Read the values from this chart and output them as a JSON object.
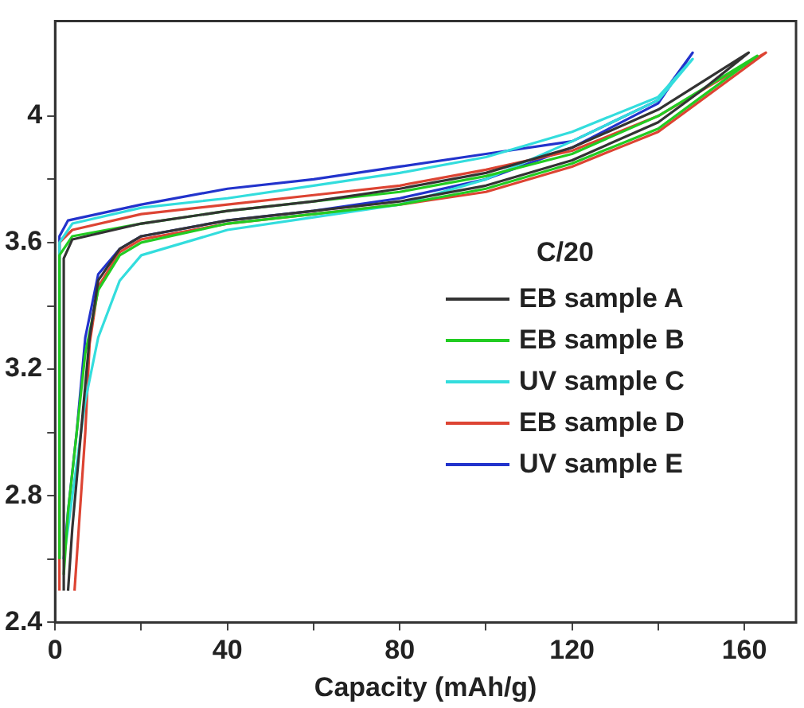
{
  "chart_data": {
    "type": "line",
    "xlabel": "Capacity (mAh/g)",
    "legend_title": "C/20",
    "legend": "center right",
    "grid": false,
    "marker": "none",
    "line_style": "solid",
    "xlim": [
      0,
      172
    ],
    "ylim": [
      2.4,
      4.3
    ],
    "xticks": [
      0,
      {
        "value": 20,
        "label": null
      },
      40,
      {
        "value": 60,
        "label": null
      },
      80,
      {
        "value": 100,
        "label": null
      },
      120,
      {
        "value": 140,
        "label": null
      },
      160
    ],
    "yticks": [
      2.4,
      {
        "value": 2.6,
        "label": null
      },
      2.8,
      {
        "value": 3.0,
        "label": null
      },
      3.2,
      {
        "value": 3.4,
        "label": null
      },
      3.6,
      {
        "value": 3.8,
        "label": null
      },
      4
    ],
    "series": [
      {
        "name": "EB sample A",
        "color": "#333333",
        "x": [
          2,
          2,
          4,
          20,
          40,
          60,
          80,
          100,
          120,
          140,
          161,
          150,
          140,
          120,
          100,
          80,
          60,
          40,
          20,
          15,
          10,
          8,
          6,
          4,
          3
        ],
        "values": [
          2.5,
          3.55,
          3.61,
          3.66,
          3.7,
          3.73,
          3.77,
          3.82,
          3.9,
          4.02,
          4.2,
          4.08,
          3.98,
          3.86,
          3.78,
          3.73,
          3.7,
          3.67,
          3.62,
          3.58,
          3.48,
          3.3,
          3.0,
          2.7,
          2.5
        ]
      },
      {
        "name": "EB sample B",
        "color": "#22cc22",
        "x": [
          1,
          1,
          4,
          20,
          40,
          60,
          80,
          100,
          120,
          140,
          163,
          150,
          140,
          120,
          100,
          80,
          60,
          40,
          20,
          15,
          10,
          7,
          5,
          3,
          2
        ],
        "values": [
          2.6,
          3.56,
          3.62,
          3.66,
          3.7,
          3.73,
          3.76,
          3.81,
          3.88,
          4.0,
          4.19,
          4.06,
          3.96,
          3.85,
          3.77,
          3.72,
          3.69,
          3.66,
          3.6,
          3.56,
          3.45,
          3.25,
          3.0,
          2.75,
          2.55
        ]
      },
      {
        "name": "UV sample C",
        "color": "#33dddd",
        "x": [
          1,
          1,
          4,
          20,
          40,
          60,
          80,
          100,
          120,
          140,
          148,
          140,
          120,
          100,
          80,
          60,
          40,
          20,
          15,
          10,
          7,
          5,
          3,
          2
        ],
        "values": [
          2.8,
          3.6,
          3.66,
          3.71,
          3.74,
          3.78,
          3.82,
          3.87,
          3.95,
          4.06,
          4.18,
          4.05,
          3.92,
          3.8,
          3.72,
          3.68,
          3.64,
          3.56,
          3.48,
          3.3,
          3.1,
          2.9,
          2.7,
          2.6
        ]
      },
      {
        "name": "EB sample D",
        "color": "#dd4433",
        "x": [
          1,
          1,
          4,
          20,
          40,
          60,
          80,
          100,
          120,
          140,
          165,
          150,
          140,
          120,
          100,
          80,
          60,
          40,
          20,
          15,
          10,
          8,
          7,
          5.5,
          4.5
        ],
        "values": [
          2.5,
          3.6,
          3.64,
          3.69,
          3.72,
          3.75,
          3.78,
          3.83,
          3.89,
          4.0,
          4.2,
          4.05,
          3.95,
          3.84,
          3.76,
          3.72,
          3.69,
          3.66,
          3.61,
          3.57,
          3.46,
          3.28,
          3.0,
          2.7,
          2.5
        ]
      },
      {
        "name": "UV sample E",
        "color": "#2233cc",
        "x": [
          1,
          1,
          3,
          20,
          40,
          60,
          80,
          100,
          120,
          140,
          148,
          144,
          140,
          120,
          100,
          80,
          60,
          40,
          20,
          15,
          10,
          7,
          5,
          3,
          2
        ],
        "values": [
          2.6,
          3.62,
          3.67,
          3.72,
          3.77,
          3.8,
          3.84,
          3.88,
          3.92,
          4.05,
          4.2,
          4.12,
          4.04,
          3.9,
          3.8,
          3.74,
          3.7,
          3.67,
          3.62,
          3.58,
          3.5,
          3.3,
          3.0,
          2.75,
          2.6
        ]
      }
    ]
  }
}
